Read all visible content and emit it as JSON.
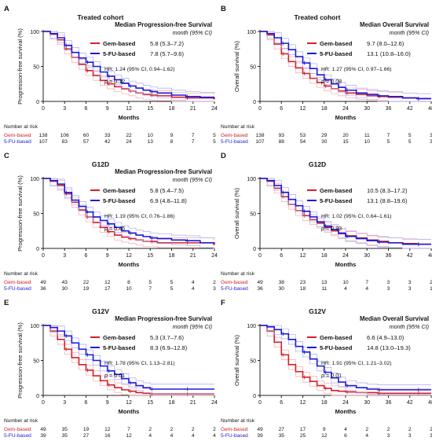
{
  "colors": {
    "gem": "#d42027",
    "fu": "#1a1adb",
    "axis": "#222222",
    "ci_gem": "#f2a9ad",
    "ci_fu": "#a9a9f2"
  },
  "common": {
    "xlabel": "Months",
    "at_risk_label": "Number at risk",
    "gem_label": "Gem-based",
    "fu_label": "5-FU-based",
    "ci_unit": "month (95% CI)"
  },
  "chart_data": [
    {
      "type": "line",
      "panel": "A",
      "title": "Treated cohort",
      "endpoint": "Median Progression-free Survival",
      "ylabel": "Progression-free survival (%)",
      "xlabel": "Months",
      "xlim": [
        0,
        24
      ],
      "xticks": [
        0,
        3,
        6,
        9,
        12,
        15,
        18,
        21,
        24
      ],
      "ylim": [
        0,
        100
      ],
      "yticks": [
        0,
        50,
        100
      ],
      "series": [
        {
          "name": "Gem-based",
          "median": "5.8 (5.3–7.2)",
          "x": [
            0,
            1,
            2,
            3,
            4,
            5,
            6,
            7,
            8,
            9,
            10,
            11,
            12,
            13,
            14,
            15,
            16,
            18,
            20,
            22,
            24
          ],
          "y": [
            100,
            96,
            88,
            75,
            63,
            53,
            44,
            37,
            30,
            25,
            21,
            18,
            15,
            12,
            10,
            9,
            8,
            6,
            5,
            5,
            4
          ]
        },
        {
          "name": "5-FU-based",
          "median": "7.8 (5.7–9.6)",
          "x": [
            0,
            1,
            2,
            3,
            4,
            5,
            6,
            7,
            8,
            9,
            10,
            11,
            12,
            13,
            14,
            15,
            16,
            18,
            20,
            22,
            24
          ],
          "y": [
            100,
            97,
            91,
            80,
            70,
            62,
            56,
            50,
            42,
            36,
            31,
            26,
            22,
            19,
            16,
            14,
            12,
            9,
            7,
            6,
            6
          ]
        }
      ],
      "hr": "HR: 1.24 (95% CI, 0.94–1.62)",
      "p": "= 0.12",
      "at_risk": {
        "ticks": [
          0,
          3,
          6,
          9,
          12,
          15,
          18,
          21,
          24
        ],
        "gem": [
          "138",
          "106",
          "60",
          "33",
          "22",
          "10",
          "9",
          "7",
          "5"
        ],
        "fu": [
          "107",
          "83",
          "57",
          "42",
          "24",
          "13",
          "8",
          "7",
          "5"
        ]
      }
    },
    {
      "type": "line",
      "panel": "B",
      "title": "Treated cohort",
      "endpoint": "Median Overall Survival",
      "ylabel": "Overall survival (%)",
      "xlabel": "Months",
      "xlim": [
        0,
        48
      ],
      "xticks": [
        0,
        6,
        12,
        18,
        24,
        30,
        36,
        42,
        48
      ],
      "ylim": [
        0,
        100
      ],
      "yticks": [
        0,
        50,
        100
      ],
      "series": [
        {
          "name": "Gem-based",
          "median": "9.7 (8.0–12.6)",
          "x": [
            0,
            2,
            4,
            6,
            8,
            10,
            12,
            14,
            16,
            18,
            20,
            22,
            24,
            27,
            30,
            33,
            36,
            40,
            44,
            48
          ],
          "y": [
            100,
            95,
            82,
            68,
            57,
            48,
            40,
            33,
            27,
            22,
            18,
            15,
            12,
            10,
            8,
            7,
            6,
            5,
            4,
            4
          ]
        },
        {
          "name": "5-FU-based",
          "median": "13.1 (10.8–16.0)",
          "x": [
            0,
            2,
            4,
            6,
            8,
            10,
            12,
            14,
            16,
            18,
            20,
            22,
            24,
            27,
            30,
            33,
            36,
            40,
            44,
            48
          ],
          "y": [
            100,
            97,
            91,
            83,
            74,
            64,
            55,
            47,
            38,
            31,
            25,
            20,
            16,
            12,
            10,
            8,
            7,
            5,
            4,
            4
          ]
        }
      ],
      "hr": "HR: 1.27 (95% CI, 0.97–1.66)",
      "p": "= 0.08",
      "at_risk": {
        "ticks": [
          0,
          6,
          12,
          18,
          24,
          30,
          36,
          42,
          48
        ],
        "gem": [
          "138",
          "93",
          "53",
          "29",
          "20",
          "11",
          "7",
          "5",
          "3"
        ],
        "fu": [
          "107",
          "88",
          "54",
          "30",
          "15",
          "10",
          "5",
          "5",
          "3"
        ]
      }
    },
    {
      "type": "line",
      "panel": "C",
      "title": "G12D",
      "endpoint": "Median Progression-free Survival",
      "ylabel": "Progression-free survival (%)",
      "xlabel": "Months",
      "xlim": [
        0,
        24
      ],
      "xticks": [
        0,
        3,
        6,
        9,
        12,
        15,
        18,
        21,
        24
      ],
      "ylim": [
        0,
        100
      ],
      "yticks": [
        0,
        50,
        100
      ],
      "series": [
        {
          "name": "Gem-based",
          "median": "5.8 (5.4–7.5)",
          "x": [
            0,
            1,
            2,
            3,
            4,
            5,
            6,
            7,
            8,
            9,
            10,
            11,
            12,
            13,
            14,
            15,
            16,
            18,
            20,
            22,
            24
          ],
          "y": [
            100,
            96,
            90,
            78,
            66,
            55,
            45,
            37,
            30,
            24,
            19,
            16,
            14,
            12,
            10,
            10,
            8,
            8,
            8,
            8,
            6
          ]
        },
        {
          "name": "5-FU-based",
          "median": "6.9 (4.8–11.8)",
          "x": [
            0,
            1,
            2,
            3,
            4,
            5,
            6,
            7,
            8,
            9,
            10,
            11,
            12,
            13,
            14,
            15,
            16,
            18,
            20,
            22,
            24
          ],
          "y": [
            100,
            97,
            92,
            80,
            69,
            60,
            52,
            45,
            40,
            35,
            30,
            25,
            22,
            19,
            17,
            15,
            14,
            12,
            11,
            8,
            8
          ]
        }
      ],
      "hr": "HR: 1.19 (95% CI, 0.76–1.86)",
      "p": "= 0.45",
      "at_risk": {
        "ticks": [
          0,
          3,
          6,
          9,
          12,
          15,
          18,
          21,
          24
        ],
        "gem": [
          "49",
          "43",
          "22",
          "12",
          "8",
          "5",
          "5",
          "4",
          "2"
        ],
        "fu": [
          "36",
          "30",
          "19",
          "17",
          "10",
          "7",
          "5",
          "4",
          "3"
        ]
      }
    },
    {
      "type": "line",
      "panel": "D",
      "title": "G12D",
      "endpoint": "",
      "ylabel": "Overall survival (%)",
      "xlabel": "Months",
      "xlim": [
        0,
        48
      ],
      "xticks": [
        0,
        6,
        12,
        18,
        24,
        30,
        36,
        42,
        48
      ],
      "ylim": [
        0,
        100
      ],
      "yticks": [
        0,
        50,
        100
      ],
      "series": [
        {
          "name": "Gem-based",
          "median": "10.5 (8.3–17.2)",
          "x": [
            0,
            2,
            4,
            6,
            8,
            10,
            12,
            14,
            16,
            18,
            20,
            22,
            24,
            27,
            30,
            33,
            36,
            40,
            44,
            48
          ],
          "y": [
            100,
            96,
            86,
            74,
            63,
            54,
            47,
            41,
            36,
            30,
            25,
            21,
            18,
            15,
            12,
            10,
            8,
            7,
            6,
            6
          ]
        },
        {
          "name": "5-FU-based",
          "median": "13.1 (8.8–19.6)",
          "x": [
            0,
            2,
            4,
            6,
            8,
            10,
            12,
            14,
            16,
            18,
            20,
            22,
            24,
            27,
            30,
            33,
            36,
            40,
            44,
            48
          ],
          "y": [
            100,
            97,
            90,
            80,
            70,
            61,
            53,
            45,
            38,
            32,
            27,
            22,
            17,
            14,
            11,
            9,
            8,
            6,
            6,
            6
          ]
        }
      ],
      "hr": "HR: 1.02 (95% CI, 0.64–1.61)",
      "p": "= 0.93",
      "at_risk": {
        "ticks": [
          0,
          6,
          12,
          18,
          24,
          30,
          36,
          42,
          48
        ],
        "gem": [
          "49",
          "38",
          "23",
          "13",
          "10",
          "7",
          "3",
          "3",
          "2"
        ],
        "fu": [
          "36",
          "30",
          "18",
          "11",
          "4",
          "4",
          "3",
          "3",
          "1"
        ]
      }
    },
    {
      "type": "line",
      "panel": "E",
      "title": "G12V",
      "endpoint": "Median Progression-free Survival",
      "ylabel": "Progression-free survival (%)",
      "xlabel": "Months",
      "xlim": [
        0,
        24
      ],
      "xticks": [
        0,
        3,
        6,
        9,
        12,
        15,
        18,
        21,
        24
      ],
      "ylim": [
        0,
        100
      ],
      "yticks": [
        0,
        50,
        100
      ],
      "series": [
        {
          "name": "Gem-based",
          "median": "5.3 (3.7–7.6)",
          "x": [
            0,
            1,
            2,
            3,
            4,
            5,
            6,
            7,
            8,
            9,
            10,
            11,
            12,
            13,
            14,
            15,
            16,
            18,
            20,
            22,
            24
          ],
          "y": [
            100,
            92,
            80,
            66,
            54,
            44,
            36,
            28,
            21,
            15,
            11,
            8,
            6,
            4,
            3,
            2,
            2,
            2,
            2,
            2,
            2
          ]
        },
        {
          "name": "5-FU-based",
          "median": "8.3 (6.9–12.8)",
          "x": [
            0,
            1,
            2,
            3,
            4,
            5,
            6,
            7,
            8,
            9,
            10,
            11,
            12,
            13,
            14,
            15,
            16,
            18,
            20,
            22,
            24
          ],
          "y": [
            100,
            97,
            92,
            85,
            75,
            66,
            58,
            50,
            42,
            35,
            30,
            24,
            18,
            14,
            11,
            9,
            9,
            9,
            9,
            9,
            9
          ]
        }
      ],
      "hr": "HR: 1.78 (95% CI, 1.13–2.81)",
      "p": "= 0.01",
      "at_risk": {
        "ticks": [
          0,
          3,
          6,
          9,
          12,
          15,
          18,
          21,
          24
        ],
        "gem": [
          "49",
          "35",
          "19",
          "12",
          "7",
          "2",
          "2",
          "2",
          "2"
        ],
        "fu": [
          "39",
          "35",
          "27",
          "16",
          "12",
          "4",
          "4",
          "4",
          "4"
        ]
      }
    },
    {
      "type": "line",
      "panel": "F",
      "title": "G12V",
      "endpoint": "Median Overall Survival",
      "ylabel": "Overall survival (%)",
      "xlabel": "Months",
      "xlim": [
        0,
        48
      ],
      "xticks": [
        0,
        6,
        12,
        18,
        24,
        30,
        36,
        42,
        48
      ],
      "ylim": [
        0,
        100
      ],
      "yticks": [
        0,
        50,
        100
      ],
      "series": [
        {
          "name": "Gem-based",
          "median": "6.6 (4.9–13.0)",
          "x": [
            0,
            2,
            4,
            6,
            8,
            10,
            12,
            14,
            16,
            18,
            20,
            22,
            24,
            27,
            30,
            33,
            36,
            40,
            44,
            48
          ],
          "y": [
            100,
            92,
            76,
            58,
            44,
            34,
            26,
            20,
            14,
            10,
            7,
            6,
            5,
            4,
            4,
            3,
            3,
            3,
            3,
            3
          ]
        },
        {
          "name": "5-FU-based",
          "median": "14.8 (13.0–19.3)",
          "x": [
            0,
            2,
            4,
            6,
            8,
            10,
            12,
            14,
            16,
            18,
            20,
            22,
            24,
            27,
            30,
            33,
            36,
            40,
            44,
            48
          ],
          "y": [
            100,
            98,
            94,
            88,
            80,
            70,
            62,
            52,
            42,
            33,
            25,
            19,
            14,
            11,
            9,
            8,
            8,
            8,
            8,
            8
          ]
        }
      ],
      "hr": "HR: 1.91 (95% CI, 1.21–3.02)",
      "p": "= 0.01",
      "at_risk": {
        "ticks": [
          0,
          6,
          12,
          18,
          24,
          30,
          36,
          42,
          48
        ],
        "gem": [
          "49",
          "27",
          "17",
          "9",
          "4",
          "2",
          "2",
          "2",
          "2"
        ],
        "fu": [
          "39",
          "35",
          "25",
          "12",
          "6",
          "4",
          "3",
          "3",
          "3"
        ]
      }
    }
  ]
}
